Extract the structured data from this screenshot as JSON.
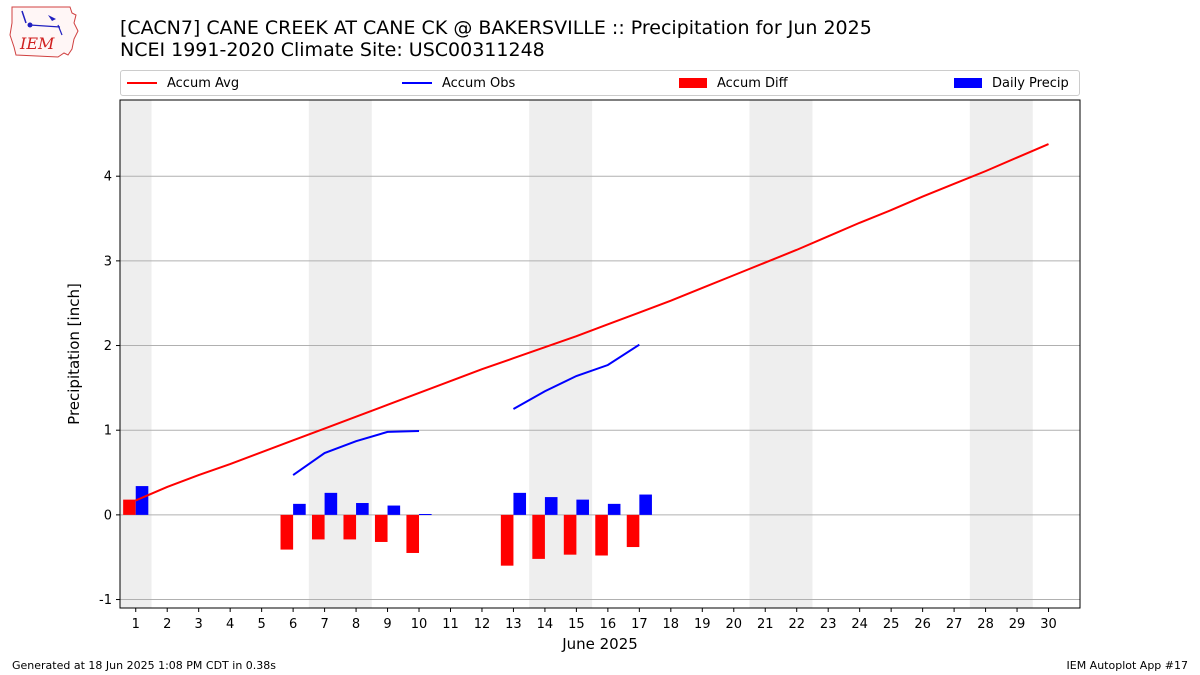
{
  "header": {
    "title_line1": "[CACN7] CANE CREEK  AT CANE CK @ BAKERSVILLE :: Precipitation for Jun 2025",
    "title_line2": "NCEI 1991-2020 Climate Site: USC00311248",
    "logo_text": "IEM"
  },
  "footer": {
    "generated": "Generated at 18 Jun 2025 1:08 PM CDT in 0.38s",
    "app": "IEM Autoplot App #17"
  },
  "colors": {
    "avg": "#ff0000",
    "obs": "#0000ff",
    "diff": "#ff0000",
    "daily": "#0000ff",
    "weekend_band": "#eeeeee",
    "grid": "#b0b0b0"
  },
  "chart_data": {
    "type": "bar",
    "xlabel": "June 2025",
    "ylabel": "Precipitation [inch]",
    "xlim": [
      0.5,
      31.0
    ],
    "ylim": [
      -1.1,
      4.9
    ],
    "x_ticks": [
      1,
      2,
      3,
      4,
      5,
      6,
      7,
      8,
      9,
      10,
      11,
      12,
      13,
      14,
      15,
      16,
      17,
      18,
      19,
      20,
      21,
      22,
      23,
      24,
      25,
      26,
      27,
      28,
      29,
      30
    ],
    "y_ticks": [
      -1,
      0,
      1,
      2,
      3,
      4
    ],
    "grid": "horizontal",
    "legend_position": "top",
    "weekend_bands": [
      [
        0.5,
        1.5
      ],
      [
        6.5,
        8.5
      ],
      [
        13.5,
        15.5
      ],
      [
        20.5,
        22.5
      ],
      [
        27.5,
        29.5
      ]
    ],
    "legend": [
      {
        "label": "Accum Avg",
        "kind": "line",
        "color": "#ff0000"
      },
      {
        "label": "Accum Obs",
        "kind": "line",
        "color": "#0000ff"
      },
      {
        "label": "Accum Diff",
        "kind": "bar",
        "color": "#ff0000"
      },
      {
        "label": "Daily Precip",
        "kind": "bar",
        "color": "#0000ff"
      }
    ],
    "series": [
      {
        "name": "Accum Avg",
        "type": "line",
        "x": [
          1,
          2,
          3,
          4,
          5,
          6,
          7,
          8,
          9,
          10,
          11,
          12,
          13,
          14,
          15,
          16,
          17,
          18,
          19,
          20,
          21,
          22,
          23,
          24,
          25,
          26,
          27,
          28,
          29,
          30
        ],
        "values": [
          0.17,
          0.33,
          0.47,
          0.6,
          0.74,
          0.88,
          1.02,
          1.16,
          1.3,
          1.44,
          1.58,
          1.72,
          1.85,
          1.98,
          2.11,
          2.25,
          2.39,
          2.53,
          2.68,
          2.83,
          2.98,
          3.13,
          3.29,
          3.45,
          3.6,
          3.76,
          3.91,
          4.06,
          4.22,
          4.38
        ]
      },
      {
        "name": "Accum Obs",
        "type": "line",
        "segments": [
          {
            "x": [
              6,
              7,
              8,
              9,
              10
            ],
            "values": [
              0.47,
              0.73,
              0.87,
              0.98,
              0.99
            ]
          },
          {
            "x": [
              13,
              14,
              15,
              16,
              17
            ],
            "values": [
              1.25,
              1.46,
              1.64,
              1.77,
              2.01
            ]
          }
        ]
      },
      {
        "name": "Accum Diff",
        "type": "bar",
        "x": [
          1,
          6,
          7,
          8,
          9,
          10,
          13,
          14,
          15,
          16,
          17
        ],
        "values": [
          0.18,
          -0.41,
          -0.29,
          -0.29,
          -0.32,
          -0.45,
          -0.6,
          -0.52,
          -0.47,
          -0.48,
          -0.38
        ]
      },
      {
        "name": "Daily Precip",
        "type": "bar",
        "x": [
          1,
          6,
          7,
          8,
          9,
          10,
          13,
          14,
          15,
          16,
          17
        ],
        "values": [
          0.34,
          0.13,
          0.26,
          0.14,
          0.11,
          0.01,
          0.26,
          0.21,
          0.18,
          0.13,
          0.24
        ]
      }
    ]
  }
}
